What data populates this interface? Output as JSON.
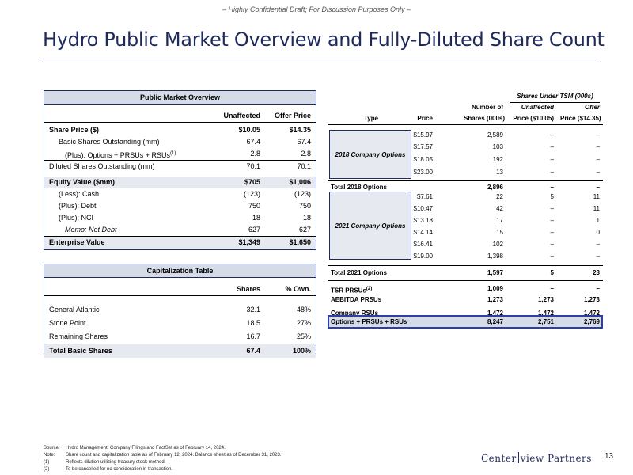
{
  "confidential": "– Highly Confidential Draft; For Discussion Purposes Only –",
  "title": "Hydro Public Market Overview and Fully-Diluted Share Count",
  "market": {
    "header": "Public Market Overview",
    "col1": "Unaffected",
    "col2": "Offer Price",
    "rows": [
      {
        "label": "Share Price ($)",
        "v1": "$10.05",
        "v2": "$14.35"
      },
      {
        "label": "Basic Shares Outstanding (mm)",
        "v1": "67.4",
        "v2": "67.4"
      },
      {
        "label": "(Plus): Options + PRSUs + RSUs",
        "sup": "(1)",
        "v1": "2.8",
        "v2": "2.8"
      },
      {
        "label": "Diluted Shares Outstanding (mm)",
        "v1": "70.1",
        "v2": "70.1"
      },
      {
        "label": "Equity Value ($mm)",
        "v1": "$705",
        "v2": "$1,006"
      },
      {
        "label": "(Less): Cash",
        "v1": "(123)",
        "v2": "(123)"
      },
      {
        "label": "(Plus): Debt",
        "v1": "750",
        "v2": "750"
      },
      {
        "label": "(Plus): NCI",
        "v1": "18",
        "v2": "18"
      },
      {
        "label": "Memo: Net Debt",
        "v1": "627",
        "v2": "627"
      },
      {
        "label": "Enterprise Value",
        "v1": "$1,349",
        "v2": "$1,650"
      }
    ]
  },
  "cap": {
    "header": "Capitalization Table",
    "col1": "Shares",
    "col2": "% Own.",
    "rows": [
      {
        "label": "General Atlantic",
        "v1": "32.1",
        "v2": "48%"
      },
      {
        "label": "Stone Point",
        "v1": "18.5",
        "v2": "27%"
      },
      {
        "label": "Remaining Shares",
        "v1": "16.7",
        "v2": "25%"
      },
      {
        "label": "Total Basic Shares",
        "v1": "67.4",
        "v2": "100%"
      }
    ]
  },
  "shares": {
    "tsm_header": "Shares Under TSM (000s)",
    "h_type": "Type",
    "h_price": "Price",
    "h_num1": "Number of",
    "h_num2": "Shares (000s)",
    "h_unaff1": "Unaffected",
    "h_unaff2": "Price ($10.05)",
    "h_offer1": "Offer",
    "h_offer2": "Price ($14.35)",
    "group2018": "2018 Company Options",
    "rows2018": [
      {
        "price": "$15.97",
        "num": "2,589",
        "unaff": "–",
        "offer": "–"
      },
      {
        "price": "$17.57",
        "num": "103",
        "unaff": "–",
        "offer": "–"
      },
      {
        "price": "$18.05",
        "num": "192",
        "unaff": "–",
        "offer": "–"
      },
      {
        "price": "$23.00",
        "num": "13",
        "unaff": "–",
        "offer": "–"
      }
    ],
    "total2018": {
      "label": "Total 2018 Options",
      "num": "2,896",
      "unaff": "–",
      "offer": "–"
    },
    "group2021": "2021 Company Options",
    "rows2021": [
      {
        "price": "$7.61",
        "num": "22",
        "unaff": "5",
        "offer": "11"
      },
      {
        "price": "$10.47",
        "num": "42",
        "unaff": "–",
        "offer": "11"
      },
      {
        "price": "$13.18",
        "num": "17",
        "unaff": "–",
        "offer": "1"
      },
      {
        "price": "$14.14",
        "num": "15",
        "unaff": "–",
        "offer": "0"
      },
      {
        "price": "$16.41",
        "num": "102",
        "unaff": "–",
        "offer": "–"
      },
      {
        "price": "$19.00",
        "num": "1,398",
        "unaff": "–",
        "offer": "–"
      }
    ],
    "total2021": {
      "label": "Total 2021 Options",
      "num": "1,597",
      "unaff": "5",
      "offer": "23"
    },
    "tsr": {
      "label": "TSR PRSUs",
      "sup": "(2)",
      "num": "1,009",
      "unaff": "–",
      "offer": "–"
    },
    "aebitda": {
      "label": "AEBITDA PRSUs",
      "num": "1,273",
      "unaff": "1,273",
      "offer": "1,273"
    },
    "rsu": {
      "label": "Company RSUs",
      "num": "1,472",
      "unaff": "1,472",
      "offer": "1,472"
    },
    "grand": {
      "label": "Options + PRSUs + RSUs",
      "num": "8,247",
      "unaff": "2,751",
      "offer": "2,769"
    }
  },
  "footnotes": [
    {
      "mark": "Source:",
      "text": "Hydro Management, Company Filings and FactSet as of February 14, 2024."
    },
    {
      "mark": "Note:",
      "text": "Share count and capitalization table as of February 12, 2024. Balance sheet as of December 31, 2023."
    },
    {
      "mark": "(1)",
      "text": "Reflects dilution utilizing treasury stock method."
    },
    {
      "mark": "(2)",
      "text": "To be cancelled for no consideration in transaction."
    }
  ],
  "logo_left": "Center",
  "logo_right": "view Partners",
  "page_number": "13"
}
